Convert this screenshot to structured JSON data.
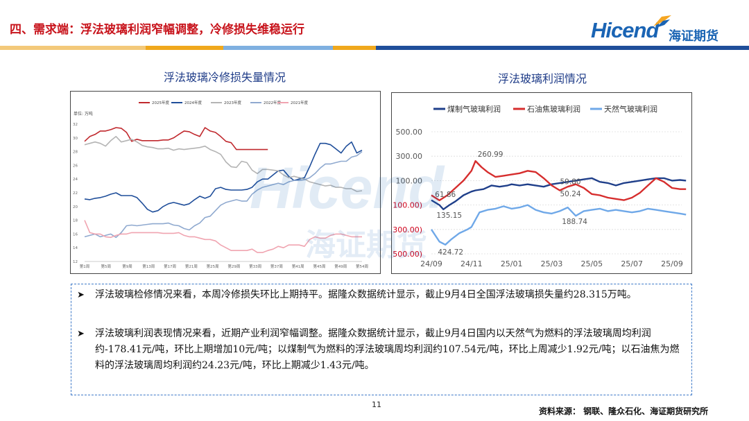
{
  "header": {
    "title": "四、需求端：浮法玻璃利润窄幅调整，冷修损失维稳运行",
    "logo_text": "Hicend",
    "logo_cn": "海证期货"
  },
  "left_chart_title": "浮法玻璃冷修损失量情况",
  "right_chart_title": "浮法玻璃利润情况",
  "watermark": {
    "en": "Hicend",
    "cn": "海证期货"
  },
  "chart_data": [
    {
      "type": "line",
      "ylabel": "单位: 万吨",
      "ylim": [
        12,
        32
      ],
      "yticks": [
        "12",
        "14",
        "16",
        "18",
        "20",
        "22",
        "24",
        "26",
        "28",
        "30",
        "32"
      ],
      "x_ticklabels": [
        "第1周",
        "第5周",
        "第9周",
        "第13周",
        "第17周",
        "第21周",
        "第25周",
        "第29周",
        "第33周",
        "第37周",
        "第41周",
        "第45周",
        "第49周",
        "第54周"
      ],
      "x_range": [
        1,
        54
      ],
      "legend_position": "top",
      "series": [
        {
          "name": "2025年度",
          "color": "#c0282d",
          "x": [
            1,
            2,
            3,
            4,
            5,
            6,
            7,
            8,
            9,
            10,
            11,
            12,
            13,
            14,
            15,
            16,
            17,
            18,
            19,
            20,
            21,
            22,
            23,
            24,
            25,
            26,
            27,
            28,
            29,
            30,
            31,
            32,
            33,
            34,
            35,
            36
          ],
          "values": [
            29.5,
            30.2,
            30.5,
            31,
            31,
            31.2,
            31.5,
            31.4,
            30.8,
            29.5,
            29.8,
            29.6,
            29.6,
            29.6,
            29.6,
            29.7,
            29.7,
            30,
            30.5,
            31,
            30.9,
            30.5,
            30.2,
            31.5,
            31,
            30.8,
            30.2,
            29.5,
            29.3,
            28.3,
            28.3,
            28.3,
            28.3,
            28.3,
            28.3,
            28.3
          ]
        },
        {
          "name": "2024年度",
          "color": "#1f4e9a",
          "x": [
            1,
            2,
            3,
            4,
            5,
            6,
            7,
            8,
            9,
            10,
            11,
            12,
            13,
            14,
            15,
            16,
            17,
            18,
            19,
            20,
            21,
            22,
            23,
            24,
            25,
            26,
            27,
            28,
            29,
            30,
            31,
            32,
            33,
            34,
            35,
            36,
            37,
            38,
            39,
            40,
            41,
            42,
            43,
            44,
            45,
            46,
            47,
            48,
            49,
            50,
            51,
            52,
            53,
            54
          ],
          "values": [
            21.1,
            21,
            21.2,
            21.3,
            21.5,
            21.8,
            22,
            21.6,
            21.6,
            21.6,
            21.3,
            20.5,
            19.6,
            19.2,
            19.4,
            20,
            20.4,
            20.6,
            20.4,
            20.2,
            20.4,
            21,
            21.5,
            21.2,
            21.5,
            22.6,
            22.8,
            22.5,
            22.4,
            22.4,
            22.4,
            22.5,
            22.8,
            23.6,
            24,
            24,
            24.6,
            25.2,
            25.3,
            24.4,
            23.8,
            24,
            24.2,
            25.8,
            27.6,
            29.2,
            29.2,
            29,
            28.4,
            27.8,
            28.8,
            29.4,
            27.8,
            28.2
          ]
        },
        {
          "name": "2023年度",
          "color": "#b4b4b4",
          "x": [
            1,
            2,
            3,
            4,
            5,
            6,
            7,
            8,
            9,
            10,
            11,
            12,
            13,
            14,
            15,
            16,
            17,
            18,
            19,
            20,
            21,
            22,
            23,
            24,
            25,
            26,
            27,
            28,
            29,
            30,
            31,
            32,
            33,
            34,
            35,
            36,
            37,
            38,
            39,
            40,
            41,
            42,
            43,
            44,
            45,
            46,
            47,
            48,
            49,
            50,
            51,
            52,
            53,
            54
          ],
          "values": [
            29,
            29.2,
            29.4,
            29.2,
            28.8,
            29.6,
            30.2,
            29.4,
            29.6,
            29.8,
            29.4,
            28.9,
            28.7,
            28.6,
            28.4,
            28.4,
            28.5,
            28.2,
            28.4,
            28.3,
            28.4,
            28.5,
            28.6,
            28.8,
            28.3,
            28,
            27.6,
            26.5,
            25.8,
            25.7,
            26.6,
            26.4,
            25.3,
            24.8,
            25.4,
            25.4,
            25.3,
            25.2,
            24.6,
            24.2,
            24.4,
            24.2,
            24,
            23.6,
            23.4,
            23.2,
            23,
            23.1,
            22.8,
            22.8,
            22.6,
            22.6,
            22.2,
            22.3
          ]
        },
        {
          "name": "2022年度",
          "color": "#8fa9cf",
          "x": [
            1,
            2,
            3,
            4,
            5,
            6,
            7,
            8,
            9,
            10,
            11,
            12,
            13,
            14,
            15,
            16,
            17,
            18,
            19,
            20,
            21,
            22,
            23,
            24,
            25,
            26,
            27,
            28,
            29,
            30,
            31,
            32,
            33,
            34,
            35,
            36,
            37,
            38,
            39,
            40,
            41,
            42,
            43,
            44,
            45,
            46,
            47,
            48,
            49,
            50,
            51,
            52,
            53,
            54
          ],
          "values": [
            15.6,
            15.8,
            16,
            15.6,
            15.8,
            16,
            15.5,
            16.2,
            17.2,
            17.3,
            17.2,
            17.3,
            17.4,
            17.5,
            17.5,
            17.5,
            17.6,
            17.3,
            17.2,
            16.8,
            16.6,
            17.2,
            17.6,
            18.4,
            18.6,
            19.4,
            20.2,
            20.6,
            20.8,
            21,
            20.8,
            20.8,
            21.8,
            22.4,
            22.8,
            23,
            23.2,
            23.4,
            23.2,
            23.6,
            23.8,
            23.8,
            23.9,
            24.2,
            24.8,
            25.6,
            26.2,
            26.2,
            26.4,
            26.6,
            26.6,
            27.2,
            27.4,
            28
          ]
        },
        {
          "name": "2021年度",
          "color": "#f0a4b0",
          "x": [
            1,
            2,
            3,
            4,
            5,
            6,
            7,
            8,
            9,
            10,
            11,
            12,
            13,
            14,
            15,
            16,
            17,
            18,
            19,
            20,
            21,
            22,
            23,
            24,
            25,
            26,
            27,
            28,
            29,
            30,
            31,
            32,
            33,
            34,
            35,
            36,
            37,
            38,
            39,
            40,
            41,
            42,
            43,
            44,
            45,
            46,
            47,
            48,
            49,
            50,
            51,
            52,
            53,
            54
          ],
          "values": [
            18,
            16.2,
            16,
            16,
            15.6,
            15.5,
            15.8,
            16,
            16,
            16.2,
            16.2,
            16.2,
            16.2,
            16.2,
            16.2,
            16.1,
            16.1,
            16.1,
            16.2,
            15.8,
            15.6,
            15.6,
            15.4,
            15.2,
            15.2,
            15,
            14.4,
            14,
            13.6,
            13.6,
            13.6,
            13.6,
            13.8,
            13.3,
            13.3,
            13.6,
            13.8,
            14.2,
            14,
            14.4,
            14.4,
            14.4,
            14.2,
            15.2,
            15.6,
            15.4,
            15.4,
            15.8,
            16,
            16,
            15.8,
            15.6,
            15.6,
            15.6
          ]
        }
      ]
    },
    {
      "type": "line",
      "ylim": [
        -500,
        500
      ],
      "yticks": [
        "500.00",
        "300.00",
        "100.00",
        "(100.00)",
        "(300.00)",
        "(500.00)"
      ],
      "x_ticklabels": [
        "24/09",
        "24/11",
        "25/01",
        "25/03",
        "25/05",
        "25/07",
        "25/09"
      ],
      "legend_position": "top",
      "series": [
        {
          "name": "煤制气玻璃利润",
          "color": "#1f3f8a",
          "x": [
            0,
            0.1,
            0.2,
            0.3,
            0.45,
            0.6,
            0.8,
            1,
            1.1,
            1.3,
            1.5,
            1.7,
            1.9,
            2,
            2.2,
            2.4,
            2.6,
            2.8,
            3,
            3.2,
            3.4,
            3.6,
            3.8,
            4,
            4.2,
            4.4,
            4.6,
            4.8,
            5,
            5.2,
            5.4,
            5.6,
            5.8,
            6,
            6.2,
            6.35
          ],
          "values": [
            -60,
            -80,
            -100,
            -135.15,
            -100,
            -70,
            -20,
            10,
            20,
            30,
            60,
            50,
            60,
            70,
            60,
            70,
            60,
            50,
            70,
            80,
            90,
            100,
            110,
            120,
            90,
            80,
            60,
            80,
            90,
            100,
            110,
            120,
            120,
            100,
            105,
            100
          ]
        },
        {
          "name": "石油焦玻璃利润",
          "color": "#d62d2d",
          "x": [
            0,
            0.2,
            0.4,
            0.6,
            0.8,
            1,
            1.1,
            1.25,
            1.4,
            1.6,
            1.8,
            2,
            2.2,
            2.4,
            2.6,
            2.8,
            3,
            3.2,
            3.4,
            3.6,
            3.8,
            4,
            4.2,
            4.4,
            4.6,
            4.8,
            5,
            5.2,
            5.4,
            5.6,
            5.8,
            6,
            6.2,
            6.35
          ],
          "values": [
            -20,
            -61.86,
            -20,
            40,
            100,
            180,
            260.99,
            210,
            170,
            130,
            140,
            150,
            160,
            180,
            170,
            120,
            60,
            20,
            50,
            70,
            40,
            -10,
            -20,
            -40,
            -50,
            -60,
            -40,
            0,
            60,
            120,
            90,
            40,
            30,
            30
          ]
        },
        {
          "name": "天然气玻璃利润",
          "color": "#6fa8e8",
          "x": [
            0,
            0.1,
            0.2,
            0.35,
            0.5,
            0.7,
            0.9,
            1,
            1.2,
            1.4,
            1.6,
            1.8,
            2,
            2.2,
            2.4,
            2.6,
            2.8,
            3,
            3.2,
            3.4,
            3.6,
            3.8,
            4,
            4.2,
            4.4,
            4.6,
            4.8,
            5,
            5.2,
            5.4,
            5.6,
            5.8,
            6,
            6.2,
            6.35
          ],
          "values": [
            -300,
            -350,
            -400,
            -424.72,
            -380,
            -330,
            -300,
            -280,
            -160,
            -140,
            -130,
            -110,
            -130,
            -120,
            -100,
            -140,
            -160,
            -170,
            -150,
            -120,
            -188.74,
            -150,
            -140,
            -130,
            -150,
            -140,
            -150,
            -160,
            -150,
            -130,
            -140,
            -150,
            -160,
            -170,
            -178.41
          ]
        }
      ],
      "data_labels": [
        "260.99",
        "61.86",
        "135.15",
        "424.72",
        "59.80",
        "50.24",
        "188.74"
      ]
    }
  ],
  "bullets": [
    {
      "text": "浮法玻璃检修情况来看，本周冷修损失环比上期持平。据隆众数据统计显示，截止9月4日全国浮法玻璃损失量约28.315万吨。"
    },
    {
      "text": "浮法玻璃利润表现情况来看，近期产业利润窄幅调整。据隆众数据统计显示，截止9月4日国内以天然气为燃料的浮法玻璃周均利润约-178.41元/吨，环比上期增加10元/吨；以煤制气为燃料的浮法玻璃周均利润约107.54元/吨，环比上周减少1.92元/吨；以石油焦为燃料的浮法玻璃周均利润约24.23元/吨，环比上期减少1.43元/吨。"
    }
  ],
  "page_number": "11",
  "source": "资料来源：  钢联、隆众石化、海证期货研究所"
}
